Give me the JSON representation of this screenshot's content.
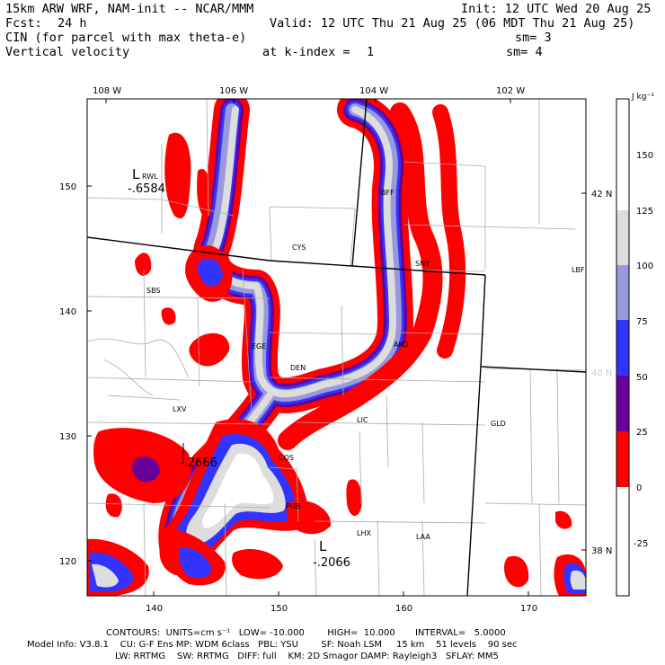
{
  "header": {
    "model": "15km ARW WRF, NAM-init -- NCAR/MMM",
    "init": "Init: 12 UTC Wed 20 Aug 25",
    "fcst_label": "Fcst:",
    "fcst_value": "24 h",
    "valid": "Valid: 12 UTC Thu 21 Aug 25 (06 MDT Thu 21 Aug 25)",
    "field1": "CIN (for parcel with max theta-e)",
    "sm1": "sm= 3",
    "field2": "Vertical velocity",
    "kindex_label": "at k-index =",
    "kindex_value": "1",
    "sm2": "sm= 4"
  },
  "map": {
    "top_lon_labels": [
      "108 W",
      "106 W",
      "104 W",
      "102 W"
    ],
    "right_lat_labels": [
      "42 N",
      "40 N",
      "38 N"
    ],
    "left_grid_labels": [
      "150",
      "140",
      "130",
      "120"
    ],
    "bottom_grid_labels": [
      "140",
      "150",
      "160",
      "170"
    ],
    "stations": [
      "RWL",
      "BFF",
      "CYS",
      "SNY",
      "SBS",
      "LBF",
      "DEN",
      "AKO",
      "LXV",
      "LHX",
      "GLD",
      "COS",
      "PUB",
      "LAA",
      "LIC",
      "EGE"
    ],
    "annotations": {
      "low1_letter": "L",
      "low1_sub": "RWL",
      "low1_value": "-.6584",
      "low2_letter": "L",
      "low2_value": "-.2066",
      "low3_value": "-.2666"
    }
  },
  "colorbar": {
    "units": "J kg⁻¹",
    "ticks": [
      "150",
      "125",
      "100",
      "75",
      "50",
      "25",
      "0",
      "-25"
    ],
    "bands": [
      {
        "label": "0-25",
        "color": "#ff0000"
      },
      {
        "label": "25-50",
        "color": "#660099"
      },
      {
        "label": "50-75",
        "color": "#3333ff"
      },
      {
        "label": "75-100",
        "color": "#9999dd"
      },
      {
        "label": "100-125",
        "color": "#dddddd"
      }
    ]
  },
  "footer": {
    "contours": "CONTOURS:  UNITS=cm s⁻¹   LOW= -10.000        HIGH=  10.000       INTERVAL=   5.0000",
    "model_info_1": "Model Info: V3.8.1    CU: G-F Ens MP: WDM 6class   PBL: YSU        SF: Noah LSM     15 km    51 levels    90 sec",
    "model_info_2": "LW: RRTMG    SW: RRTMG   DIFF: full    KM: 2D Smagor DAMP: Rayleigh3   SFLAY: MM5"
  }
}
